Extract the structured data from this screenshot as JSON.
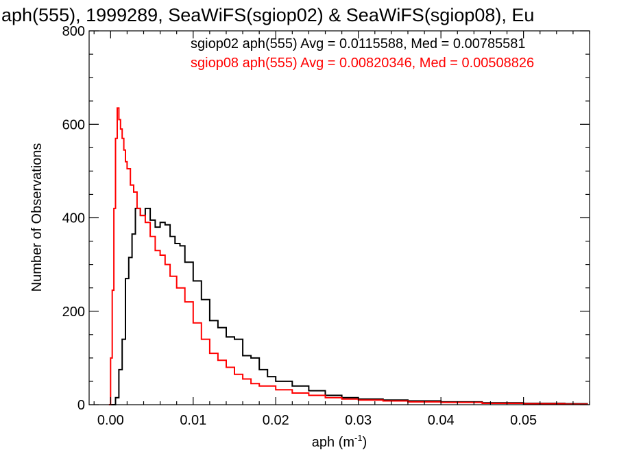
{
  "chart_data": {
    "type": "line",
    "title": "aph(555), 1999289, SeaWiFS(sgiop02) & SeaWiFS(sgiop08), Eu",
    "xlabel_main": "aph (m",
    "xlabel_sup": "-1",
    "xlabel_close": ")",
    "ylabel": "Number of Observations",
    "xlim": [
      -0.0026,
      0.058
    ],
    "ylim": [
      0,
      800
    ],
    "xticks": [
      0.0,
      0.01,
      0.02,
      0.03,
      0.04,
      0.05
    ],
    "xtick_labels": [
      "0.00",
      "0.01",
      "0.02",
      "0.03",
      "0.04",
      "0.05"
    ],
    "yticks": [
      0,
      200,
      400,
      600,
      800
    ],
    "ytick_labels": [
      "0",
      "200",
      "400",
      "600",
      "800"
    ],
    "grid": false,
    "step": "histogram",
    "series": [
      {
        "name": "sgiop02",
        "color": "#000000",
        "annotation": "sgiop02 aph(555) Avg = 0.0115588, Med = 0.00785581",
        "points": [
          [
            0.0,
            0
          ],
          [
            0.0006,
            15
          ],
          [
            0.001,
            75
          ],
          [
            0.0014,
            140
          ],
          [
            0.0018,
            270
          ],
          [
            0.0022,
            315
          ],
          [
            0.0026,
            365
          ],
          [
            0.003,
            420
          ],
          [
            0.0036,
            405
          ],
          [
            0.0042,
            420
          ],
          [
            0.0048,
            395
          ],
          [
            0.0054,
            380
          ],
          [
            0.006,
            390
          ],
          [
            0.0066,
            385
          ],
          [
            0.0072,
            360
          ],
          [
            0.0078,
            345
          ],
          [
            0.0084,
            340
          ],
          [
            0.009,
            305
          ],
          [
            0.01,
            265
          ],
          [
            0.011,
            225
          ],
          [
            0.012,
            180
          ],
          [
            0.013,
            165
          ],
          [
            0.014,
            145
          ],
          [
            0.015,
            140
          ],
          [
            0.016,
            105
          ],
          [
            0.017,
            100
          ],
          [
            0.018,
            75
          ],
          [
            0.019,
            60
          ],
          [
            0.02,
            50
          ],
          [
            0.022,
            40
          ],
          [
            0.024,
            30
          ],
          [
            0.026,
            20
          ],
          [
            0.028,
            15
          ],
          [
            0.03,
            12
          ],
          [
            0.033,
            10
          ],
          [
            0.036,
            8
          ],
          [
            0.04,
            6
          ],
          [
            0.045,
            4
          ],
          [
            0.05,
            3
          ],
          [
            0.055,
            2
          ],
          [
            0.0578,
            2
          ]
        ]
      },
      {
        "name": "sgiop08",
        "color": "#ff0000",
        "annotation": "sgiop08 aph(555) Avg = 0.00820346, Med = 0.00508826",
        "points": [
          [
            -0.0002,
            0
          ],
          [
            0.0,
            100
          ],
          [
            0.0002,
            245
          ],
          [
            0.0004,
            420
          ],
          [
            0.0006,
            570
          ],
          [
            0.0008,
            635
          ],
          [
            0.001,
            610
          ],
          [
            0.0012,
            590
          ],
          [
            0.0014,
            570
          ],
          [
            0.0016,
            545
          ],
          [
            0.0018,
            520
          ],
          [
            0.002,
            505
          ],
          [
            0.0024,
            470
          ],
          [
            0.0028,
            455
          ],
          [
            0.0032,
            420
          ],
          [
            0.0036,
            405
          ],
          [
            0.0042,
            390
          ],
          [
            0.0048,
            360
          ],
          [
            0.0054,
            330
          ],
          [
            0.006,
            320
          ],
          [
            0.0066,
            300
          ],
          [
            0.0072,
            275
          ],
          [
            0.008,
            250
          ],
          [
            0.009,
            220
          ],
          [
            0.01,
            175
          ],
          [
            0.011,
            140
          ],
          [
            0.012,
            110
          ],
          [
            0.013,
            95
          ],
          [
            0.014,
            80
          ],
          [
            0.015,
            65
          ],
          [
            0.016,
            55
          ],
          [
            0.017,
            45
          ],
          [
            0.018,
            40
          ],
          [
            0.02,
            32
          ],
          [
            0.022,
            25
          ],
          [
            0.024,
            20
          ],
          [
            0.026,
            15
          ],
          [
            0.028,
            12
          ],
          [
            0.03,
            10
          ],
          [
            0.033,
            8
          ],
          [
            0.036,
            6
          ],
          [
            0.04,
            5
          ],
          [
            0.045,
            3
          ],
          [
            0.05,
            2
          ],
          [
            0.055,
            1
          ],
          [
            0.0578,
            1
          ]
        ]
      }
    ]
  }
}
